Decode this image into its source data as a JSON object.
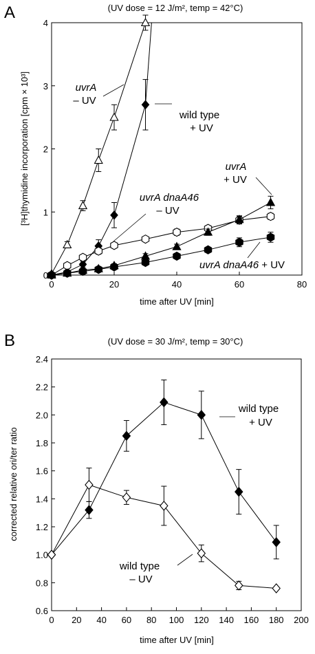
{
  "chart_data": [
    {
      "panel_label": "A",
      "type": "line",
      "title": "(UV dose = 12 J/m², temp = 42°C)",
      "xlabel": "time after UV [min]",
      "ylabel": "[³H]thymidine incorporation [cpm × 10³]",
      "xlim": [
        0,
        80
      ],
      "ylim": [
        0,
        4
      ],
      "xticks": [
        0,
        20,
        40,
        60,
        80
      ],
      "yticks": [
        0,
        1,
        2,
        3,
        4
      ],
      "grid": false,
      "series": [
        {
          "label_lines": [
            "uvrA",
            "– UV"
          ],
          "label_italic": [
            true,
            false
          ],
          "marker": "triangle-open",
          "x": [
            0,
            5,
            10,
            15,
            20,
            30
          ],
          "y": [
            0.02,
            0.48,
            1.1,
            1.82,
            2.5,
            4.0
          ],
          "err": [
            0,
            0.05,
            0.08,
            0.18,
            0.2,
            0.12
          ],
          "extend_to": [
            33,
            5.0
          ]
        },
        {
          "label_lines": [
            "wild type",
            "+ UV"
          ],
          "label_italic": [
            false,
            false
          ],
          "marker": "diamond-filled",
          "x": [
            0,
            5,
            10,
            15,
            20,
            30
          ],
          "y": [
            0.0,
            0.05,
            0.17,
            0.46,
            0.95,
            2.7
          ],
          "err": [
            0,
            0.03,
            0.05,
            0.1,
            0.2,
            0.4
          ],
          "extend_to": [
            33,
            4.7
          ]
        },
        {
          "label_lines": [
            "uvrA dnaA46",
            "– UV"
          ],
          "label_italic": [
            true,
            false
          ],
          "marker": "hexagon-open",
          "x": [
            0,
            5,
            10,
            15,
            20,
            30,
            40,
            50,
            60,
            70
          ],
          "y": [
            0.0,
            0.15,
            0.28,
            0.38,
            0.47,
            0.57,
            0.68,
            0.74,
            0.87,
            0.93
          ],
          "err": [
            0,
            0.02,
            0.03,
            0.05,
            0.03,
            0.03,
            0.05,
            0.04,
            0.06,
            0.05
          ]
        },
        {
          "label_lines": [
            "uvrA",
            "+ UV"
          ],
          "label_italic": [
            true,
            false
          ],
          "marker": "triangle-filled",
          "x": [
            0,
            5,
            10,
            15,
            20,
            30,
            40,
            50,
            60,
            70
          ],
          "y": [
            0.0,
            0.03,
            0.08,
            0.1,
            0.15,
            0.3,
            0.45,
            0.68,
            0.88,
            1.15
          ],
          "err": [
            0,
            0.02,
            0.02,
            0.03,
            0.03,
            0.04,
            0.04,
            0.05,
            0.06,
            0.1
          ]
        },
        {
          "label_lines": [
            "uvrA dnaA46 + UV"
          ],
          "label_italic": [
            false
          ],
          "marker": "hexagon-filled",
          "x": [
            0,
            5,
            10,
            15,
            20,
            30,
            40,
            50,
            60,
            70
          ],
          "y": [
            0.0,
            0.03,
            0.06,
            0.09,
            0.13,
            0.2,
            0.3,
            0.4,
            0.52,
            0.6
          ],
          "err": [
            0,
            0.02,
            0.02,
            0.02,
            0.02,
            0.03,
            0.03,
            0.04,
            0.07,
            0.08
          ]
        }
      ],
      "label_parts": {
        "italic": "uvrA dnaA46",
        "plain": " + UV"
      }
    },
    {
      "panel_label": "B",
      "type": "line",
      "title": "(UV dose = 30 J/m², temp = 30°C)",
      "xlabel": "time after UV [min]",
      "ylabel": "corrected relative ori/ter ratio",
      "xlim": [
        0,
        200
      ],
      "ylim": [
        0.6,
        2.4
      ],
      "xticks": [
        0,
        20,
        40,
        60,
        80,
        100,
        120,
        140,
        160,
        180,
        200
      ],
      "yticks": [
        "0.6",
        "0.8",
        "1.0",
        "1.2",
        "1.4",
        "1.6",
        "1.8",
        "2.0",
        "2.2",
        "2.4"
      ],
      "grid": false,
      "series": [
        {
          "label_lines": [
            "wild type",
            "+ UV"
          ],
          "label_italic": [
            false,
            false
          ],
          "marker": "diamond-filled",
          "x": [
            0,
            30,
            60,
            90,
            120,
            150,
            180
          ],
          "y": [
            1.0,
            1.32,
            1.85,
            2.09,
            2.0,
            1.45,
            1.09
          ],
          "err": [
            0,
            0.06,
            0.11,
            0.16,
            0.17,
            0.16,
            0.12
          ]
        },
        {
          "label_lines": [
            "wild type",
            "– UV"
          ],
          "label_italic": [
            false,
            false
          ],
          "marker": "diamond-open",
          "x": [
            0,
            30,
            60,
            90,
            120,
            150,
            180
          ],
          "y": [
            1.0,
            1.5,
            1.41,
            1.35,
            1.01,
            0.78,
            0.76
          ],
          "err": [
            0,
            0.12,
            0.05,
            0.14,
            0.06,
            0.03,
            0
          ]
        }
      ]
    }
  ]
}
